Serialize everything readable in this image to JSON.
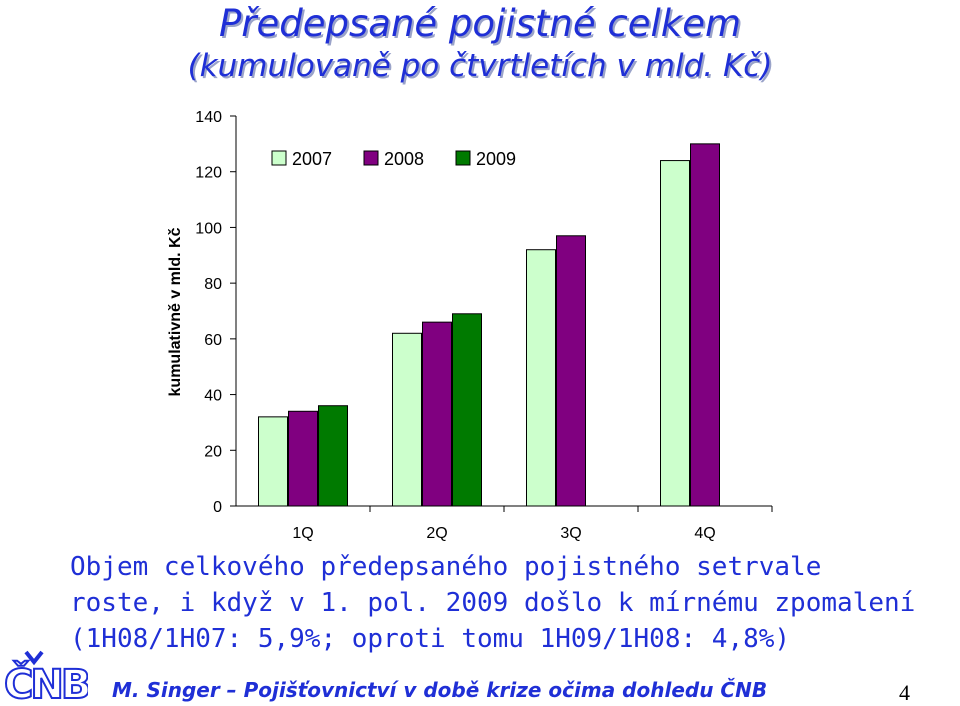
{
  "slide": {
    "title": "Předepsané pojistné celkem",
    "subtitle": "(kumulovaně po čtvrtletích v mld. Kč)",
    "description": [
      "Objem celkového předepsaného pojistného setrvale",
      "roste, i když v 1. pol. 2009 došlo k mírnému zpomalení",
      "(1H08/1H07: 5,9%; oproti tomu 1H09/1H08: 4,8%)"
    ],
    "footer": "M. Singer – Pojišťovnictví v době krize očima dohledu ČNB",
    "page_number": "4",
    "logo_text": "ČNB"
  },
  "chart_data": {
    "type": "bar",
    "categories": [
      "1Q",
      "2Q",
      "3Q",
      "4Q"
    ],
    "series": [
      {
        "name": "2007",
        "color": "#ccffcc",
        "values": [
          32,
          62,
          92,
          124
        ]
      },
      {
        "name": "2008",
        "color": "#800080",
        "values": [
          34,
          66,
          97,
          130
        ]
      },
      {
        "name": "2009",
        "color": "#007a00",
        "values": [
          36,
          69,
          null,
          null
        ]
      }
    ],
    "ylabel": "kumulativně v mld. Kč",
    "ylim": [
      0,
      140
    ],
    "yticks": [
      0,
      20,
      40,
      60,
      80,
      100,
      120,
      140
    ],
    "grid": false,
    "legend": "top-left"
  }
}
